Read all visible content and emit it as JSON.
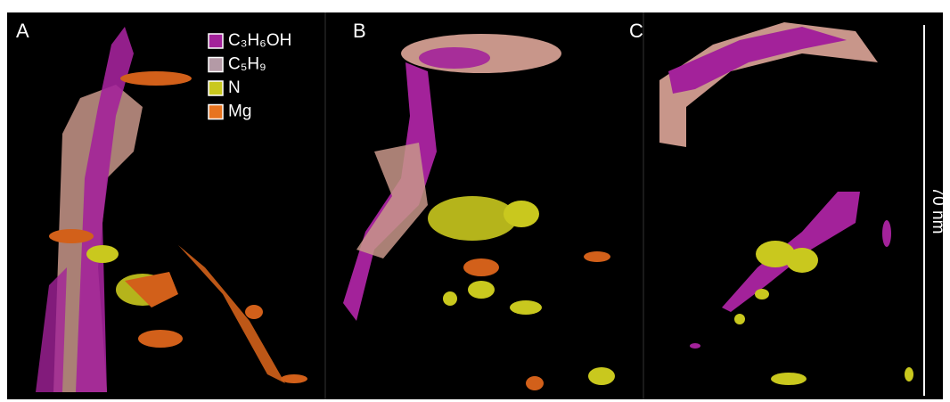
{
  "panels": [
    {
      "label": "A"
    },
    {
      "label": "B"
    },
    {
      "label": "C"
    }
  ],
  "legend": [
    {
      "label": "C₃H₆OH",
      "color": "#a3229a"
    },
    {
      "label": "C₅H₉",
      "color": "#b49aa6"
    },
    {
      "label": "N",
      "color": "#c9c81e"
    },
    {
      "label": "Mg",
      "color": "#e8741f"
    }
  ],
  "scale_bar": {
    "label": "70 nm"
  }
}
